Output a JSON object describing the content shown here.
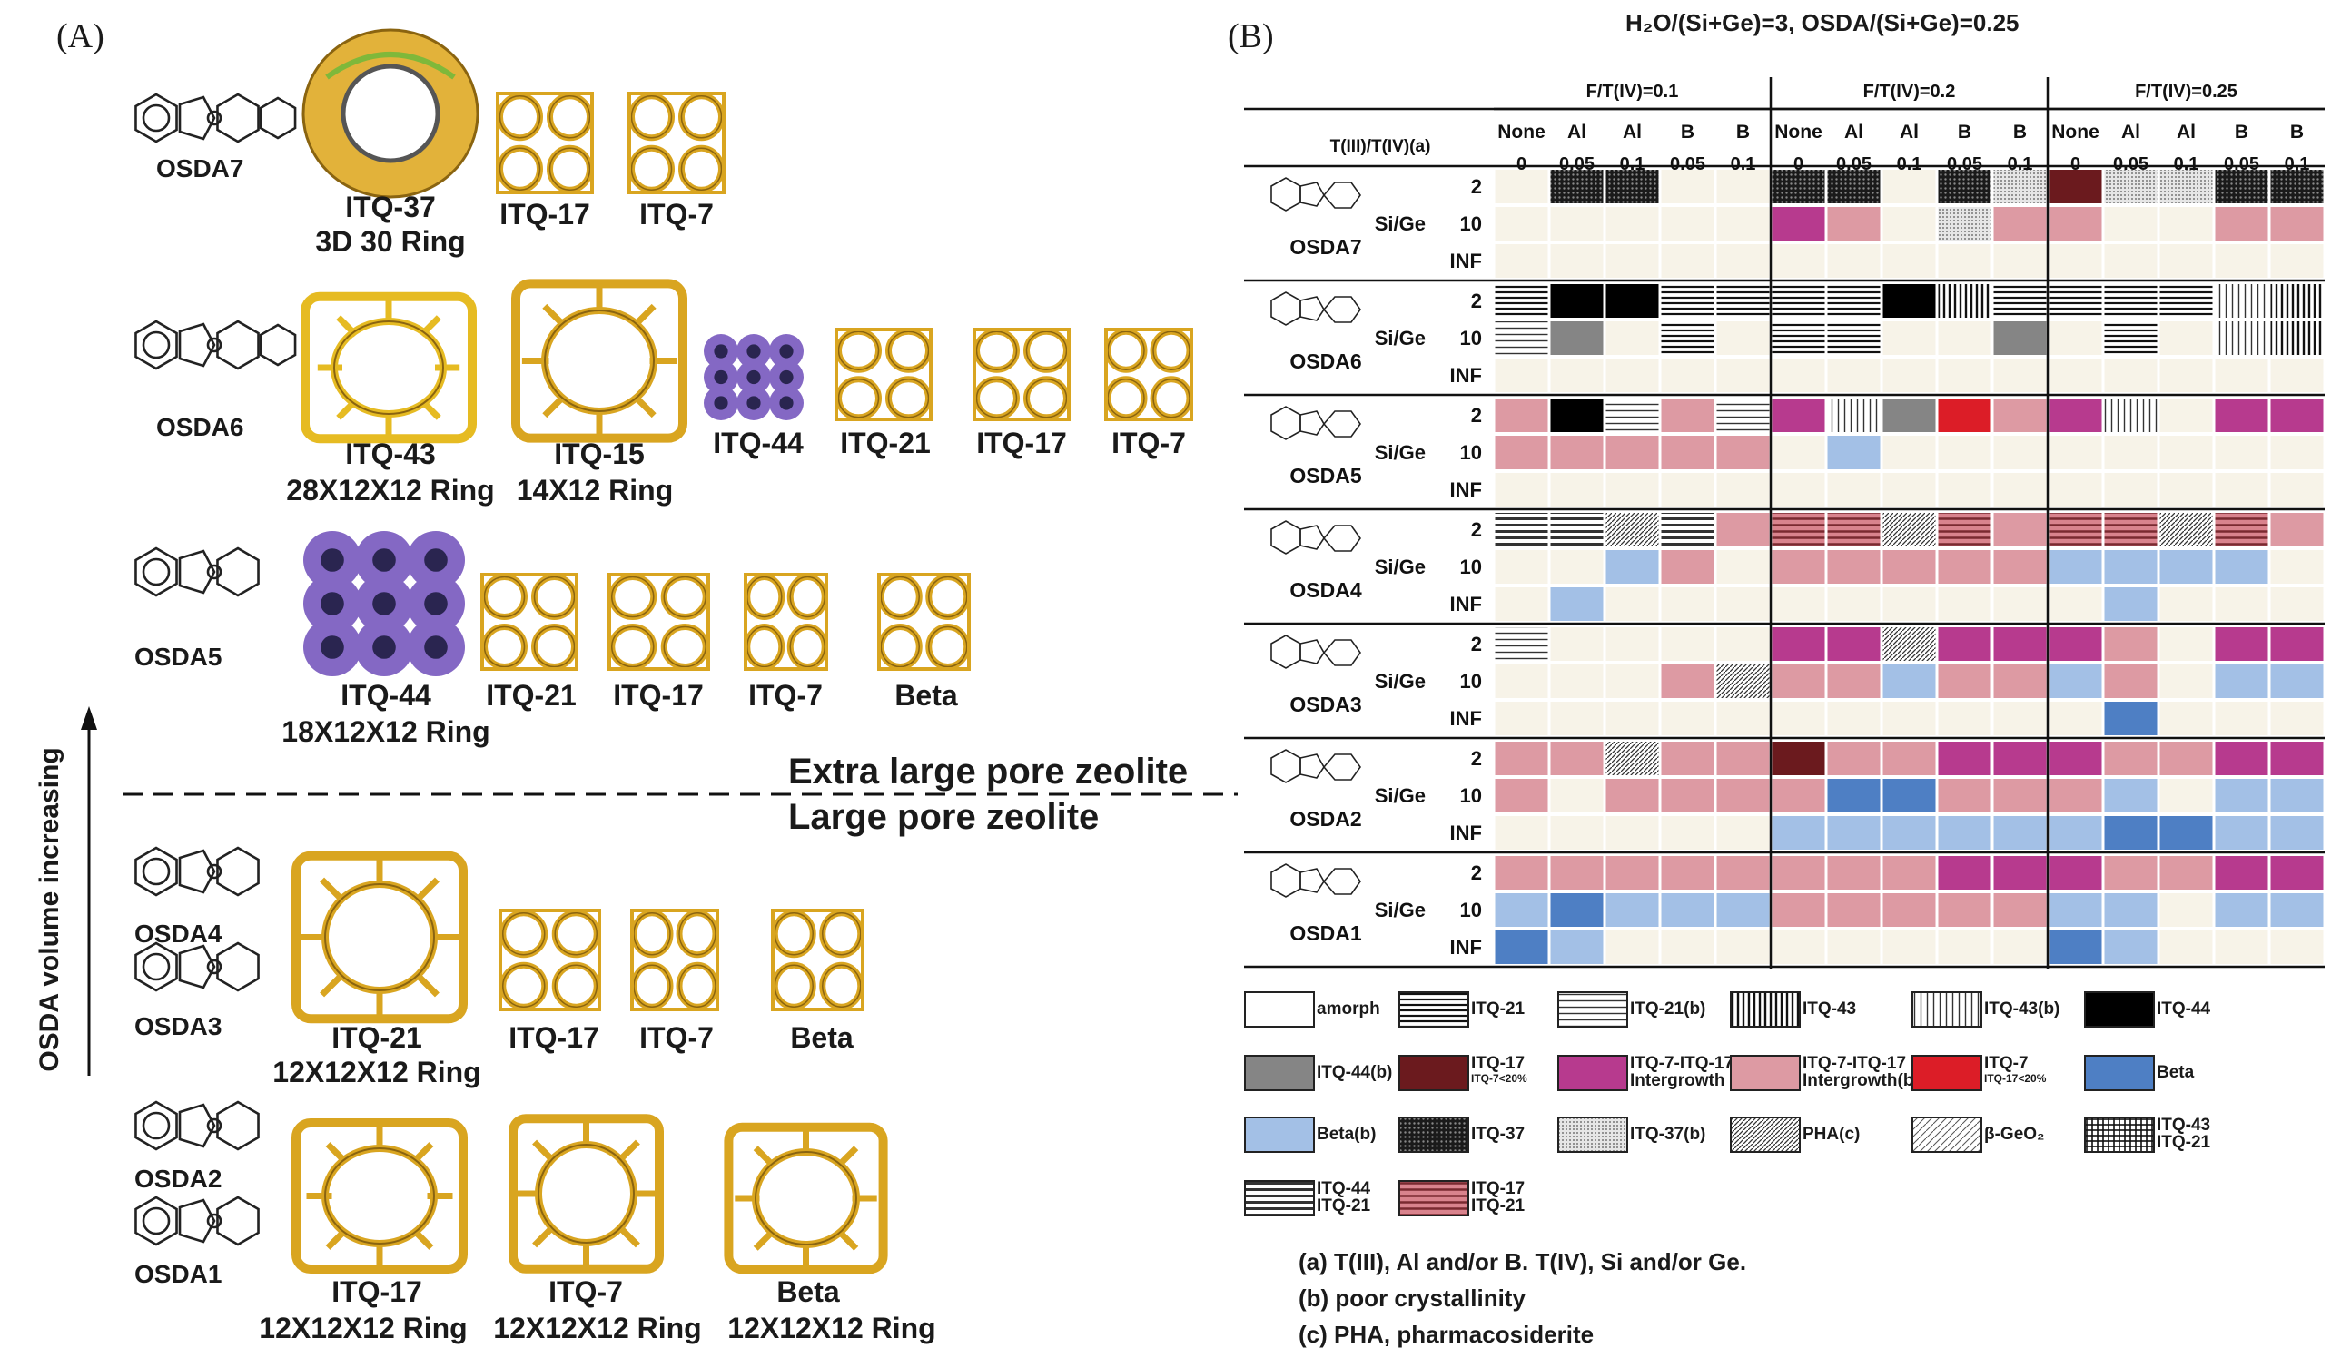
{
  "panel_a": {
    "label": "(A)",
    "axis_label": "OSDA volume increasing",
    "divider_upper": "Extra large pore zeolite",
    "divider_lower": "Large pore zeolite",
    "rows": [
      {
        "osda": [
          "OSDA7"
        ],
        "frameworks": [
          {
            "name": "ITQ-37",
            "sub": "3D 30 Ring",
            "color": "#e2b23a"
          },
          {
            "name": "ITQ-17",
            "sub": "",
            "color": "#d9a520"
          },
          {
            "name": "ITQ-7",
            "sub": "",
            "color": "#d9a520"
          }
        ]
      },
      {
        "osda": [
          "OSDA6"
        ],
        "frameworks": [
          {
            "name": "ITQ-43",
            "sub": "28X12X12 Ring",
            "color": "#e6bb22"
          },
          {
            "name": "ITQ-15",
            "sub": "14X12 Ring",
            "color": "#d9a520"
          },
          {
            "name": "ITQ-44",
            "sub": "",
            "color": "#8468c4"
          },
          {
            "name": "ITQ-21",
            "sub": "",
            "color": "#d9a520"
          },
          {
            "name": "ITQ-17",
            "sub": "",
            "color": "#d9a520"
          },
          {
            "name": "ITQ-7",
            "sub": "",
            "color": "#d9a520"
          }
        ]
      },
      {
        "osda": [
          "OSDA5"
        ],
        "frameworks": [
          {
            "name": "ITQ-44",
            "sub": "18X12X12 Ring",
            "color": "#8468c4"
          },
          {
            "name": "ITQ-21",
            "sub": "",
            "color": "#d9a520"
          },
          {
            "name": "ITQ-17",
            "sub": "",
            "color": "#d9a520"
          },
          {
            "name": "ITQ-7",
            "sub": "",
            "color": "#d9a520"
          },
          {
            "name": "Beta",
            "sub": "",
            "color": "#d9a520"
          }
        ]
      },
      {
        "osda": [
          "OSDA4",
          "OSDA3"
        ],
        "frameworks": [
          {
            "name": "ITQ-21",
            "sub": "12X12X12 Ring",
            "color": "#d9a520"
          },
          {
            "name": "ITQ-17",
            "sub": "",
            "color": "#d9a520"
          },
          {
            "name": "ITQ-7",
            "sub": "",
            "color": "#d9a520"
          },
          {
            "name": "Beta",
            "sub": "",
            "color": "#d9a520"
          }
        ]
      },
      {
        "osda": [
          "OSDA2",
          "OSDA1"
        ],
        "frameworks": [
          {
            "name": "ITQ-17",
            "sub": "12X12X12 Ring",
            "color": "#d9a520"
          },
          {
            "name": "ITQ-7",
            "sub": "12X12X12 Ring",
            "color": "#d9a520"
          },
          {
            "name": "Beta",
            "sub": "12X12X12 Ring",
            "color": "#d9a520"
          }
        ]
      }
    ]
  },
  "panel_b": {
    "label": "(B)",
    "title": "H₂O/(Si+Ge)=3, OSDA/(Si+Ge)=0.25",
    "ratio_header": "T(III)/T(IV)(a)",
    "si_ge_label": "Si/Ge",
    "groups": [
      {
        "label": "F/T(IV)=0.1",
        "cols": [
          {
            "t": "None",
            "v": "0"
          },
          {
            "t": "Al",
            "v": "0.05"
          },
          {
            "t": "Al",
            "v": "0.1"
          },
          {
            "t": "B",
            "v": "0.05"
          },
          {
            "t": "B",
            "v": "0.1"
          }
        ]
      },
      {
        "label": "F/T(IV)=0.2",
        "cols": [
          {
            "t": "None",
            "v": "0"
          },
          {
            "t": "Al",
            "v": "0.05"
          },
          {
            "t": "Al",
            "v": "0.1"
          },
          {
            "t": "B",
            "v": "0.05"
          },
          {
            "t": "B",
            "v": "0.1"
          }
        ]
      },
      {
        "label": "F/T(IV)=0.25",
        "cols": [
          {
            "t": "None",
            "v": "0"
          },
          {
            "t": "Al",
            "v": "0.05"
          },
          {
            "t": "Al",
            "v": "0.1"
          },
          {
            "t": "B",
            "v": "0.05"
          },
          {
            "t": "B",
            "v": "0.1"
          }
        ]
      }
    ],
    "blocks": [
      {
        "osda": "OSDA7",
        "rows": [
          {
            "label": "2",
            "cells": [
              "n",
              "q37",
              "q37",
              "n",
              "n",
              "q37",
              "q37",
              "n",
              "q37",
              "q37b",
              "p17",
              "q37b",
              "q37b",
              "q37",
              "q37"
            ]
          },
          {
            "label": "10",
            "cells": [
              "n",
              "n",
              "n",
              "n",
              "n",
              "m",
              "r",
              "n",
              "q37b",
              "r",
              "r",
              "n",
              "n",
              "r",
              "r"
            ]
          },
          {
            "label": "INF",
            "cells": [
              "n",
              "n",
              "n",
              "n",
              "n",
              "n",
              "n",
              "n",
              "n",
              "n",
              "n",
              "n",
              "n",
              "n",
              "n"
            ]
          }
        ]
      },
      {
        "osda": "OSDA6",
        "rows": [
          {
            "label": "2",
            "cells": [
              "q21",
              "k",
              "k",
              "q21",
              "q21",
              "q21",
              "q21",
              "k",
              "c43",
              "q21",
              "q21",
              "q21",
              "q21",
              "v43",
              "c43"
            ]
          },
          {
            "label": "10",
            "cells": [
              "q21b",
              "g",
              "n",
              "q21",
              "n",
              "q21",
              "q21",
              "n",
              "n",
              "g",
              "n",
              "q21",
              "n",
              "v43",
              "c43"
            ]
          },
          {
            "label": "INF",
            "cells": [
              "n",
              "n",
              "n",
              "n",
              "n",
              "n",
              "n",
              "n",
              "n",
              "n",
              "n",
              "n",
              "n",
              "n",
              "n"
            ]
          }
        ]
      },
      {
        "osda": "OSDA5",
        "rows": [
          {
            "label": "2",
            "cells": [
              "r",
              "k",
              "q21b",
              "r",
              "q21b",
              "m",
              "v43",
              "g",
              "red",
              "r",
              "m",
              "v43",
              "n",
              "m",
              "m"
            ]
          },
          {
            "label": "10",
            "cells": [
              "r",
              "r",
              "r",
              "r",
              "r",
              "n",
              "lb",
              "n",
              "n",
              "n",
              "n",
              "n",
              "n",
              "n",
              "n"
            ]
          },
          {
            "label": "INF",
            "cells": [
              "n",
              "n",
              "n",
              "n",
              "n",
              "n",
              "n",
              "n",
              "n",
              "n",
              "n",
              "n",
              "n",
              "n",
              "n"
            ]
          }
        ]
      },
      {
        "osda": "OSDA4",
        "rows": [
          {
            "label": "2",
            "cells": [
              "q44",
              "q44",
              "pha",
              "q44",
              "r",
              "q17",
              "q17",
              "pha",
              "q17",
              "r",
              "q17",
              "q17",
              "pha",
              "q17",
              "r"
            ]
          },
          {
            "label": "10",
            "cells": [
              "n",
              "n",
              "lb",
              "r",
              "n",
              "r",
              "r",
              "r",
              "r",
              "r",
              "lb",
              "lb",
              "lb",
              "lb",
              "n"
            ]
          },
          {
            "label": "INF",
            "cells": [
              "n",
              "lb",
              "n",
              "n",
              "n",
              "n",
              "n",
              "n",
              "n",
              "n",
              "n",
              "lb",
              "n",
              "n",
              "n"
            ]
          }
        ]
      },
      {
        "osda": "OSDA3",
        "rows": [
          {
            "label": "2",
            "cells": [
              "q21b",
              "n",
              "n",
              "n",
              "n",
              "m",
              "m",
              "pha",
              "m",
              "m",
              "m",
              "r",
              "n",
              "m",
              "m"
            ]
          },
          {
            "label": "10",
            "cells": [
              "n",
              "n",
              "n",
              "r",
              "pha",
              "r",
              "r",
              "lb",
              "r",
              "r",
              "lb",
              "r",
              "n",
              "lb",
              "lb"
            ]
          },
          {
            "label": "INF",
            "cells": [
              "n",
              "n",
              "n",
              "n",
              "n",
              "n",
              "n",
              "n",
              "n",
              "n",
              "n",
              "b",
              "n",
              "n",
              "n"
            ]
          }
        ]
      },
      {
        "osda": "OSDA2",
        "rows": [
          {
            "label": "2",
            "cells": [
              "r",
              "r",
              "pha",
              "r",
              "r",
              "p17",
              "r",
              "r",
              "m",
              "m",
              "m",
              "r",
              "r",
              "m",
              "m"
            ]
          },
          {
            "label": "10",
            "cells": [
              "r",
              "n",
              "r",
              "r",
              "r",
              "r",
              "b",
              "b",
              "r",
              "r",
              "r",
              "lb",
              "n",
              "lb",
              "lb"
            ]
          },
          {
            "label": "INF",
            "cells": [
              "n",
              "n",
              "n",
              "n",
              "n",
              "lb",
              "lb",
              "lb",
              "lb",
              "lb",
              "lb",
              "b",
              "b",
              "lb",
              "lb"
            ]
          }
        ]
      },
      {
        "osda": "OSDA1",
        "rows": [
          {
            "label": "2",
            "cells": [
              "r",
              "r",
              "r",
              "r",
              "r",
              "r",
              "r",
              "r",
              "m",
              "m",
              "m",
              "r",
              "r",
              "m",
              "m"
            ]
          },
          {
            "label": "10",
            "cells": [
              "lb",
              "b",
              "lb",
              "lb",
              "lb",
              "r",
              "r",
              "r",
              "r",
              "r",
              "lb",
              "lb",
              "n",
              "lb",
              "lb"
            ]
          },
          {
            "label": "INF",
            "cells": [
              "b",
              "lb",
              "n",
              "n",
              "n",
              "n",
              "n",
              "n",
              "n",
              "n",
              "b",
              "lb",
              "n",
              "n",
              "n"
            ]
          }
        ]
      }
    ],
    "legend": [
      {
        "key": "amorph",
        "label": "amorph",
        "label2": "",
        "note": ""
      },
      {
        "key": "q21",
        "label": "ITQ-21",
        "label2": "",
        "note": ""
      },
      {
        "key": "q21b",
        "label": "ITQ-21(b)",
        "label2": "",
        "note": ""
      },
      {
        "key": "c43",
        "label": "ITQ-43",
        "label2": "",
        "note": ""
      },
      {
        "key": "v43",
        "label": "ITQ-43(b)",
        "label2": "",
        "note": ""
      },
      {
        "key": "k",
        "label": "ITQ-44",
        "label2": "",
        "note": ""
      },
      {
        "key": "g",
        "label": "ITQ-44(b)",
        "label2": "",
        "note": ""
      },
      {
        "key": "p17",
        "label": "ITQ-17",
        "label2": "",
        "note": "ITQ-7<20%"
      },
      {
        "key": "m",
        "label": "ITQ-7-ITQ-17",
        "label2": "Intergrowth",
        "note": ""
      },
      {
        "key": "r",
        "label": "ITQ-7-ITQ-17",
        "label2": "Intergrowth(b)",
        "note": ""
      },
      {
        "key": "red",
        "label": "ITQ-7",
        "label2": "",
        "note": "ITQ-17<20%"
      },
      {
        "key": "b",
        "label": "Beta",
        "label2": "",
        "note": ""
      },
      {
        "key": "lb",
        "label": "Beta(b)",
        "label2": "",
        "note": ""
      },
      {
        "key": "q37",
        "label": "ITQ-37",
        "label2": "",
        "note": ""
      },
      {
        "key": "q37b",
        "label": "ITQ-37(b)",
        "label2": "",
        "note": ""
      },
      {
        "key": "pha",
        "label": "PHA(c)",
        "label2": "",
        "note": ""
      },
      {
        "key": "geo2",
        "label": "β-GeO₂",
        "label2": "",
        "note": ""
      },
      {
        "key": "c43_21",
        "label": "ITQ-43",
        "label2": "ITQ-21",
        "note": ""
      },
      {
        "key": "q44",
        "label": "ITQ-44",
        "label2": "ITQ-21",
        "note": ""
      },
      {
        "key": "q17",
        "label": "ITQ-17",
        "label2": "ITQ-21",
        "note": ""
      }
    ],
    "notes": [
      "(a) T(III), Al and/or B. T(IV), Si and/or Ge.",
      "(b) poor crystallinity",
      "(c) PHA, pharmacosiderite"
    ],
    "colors": {
      "empty": "#f7f3e8",
      "magenta": "#b73a8e",
      "rose": "#dd9aa3",
      "beta": "#4e7fc4",
      "beta_b": "#a3c0e6",
      "red": "#dc1d27",
      "maroon": "#6b1a1e",
      "grey": "#858585"
    }
  }
}
